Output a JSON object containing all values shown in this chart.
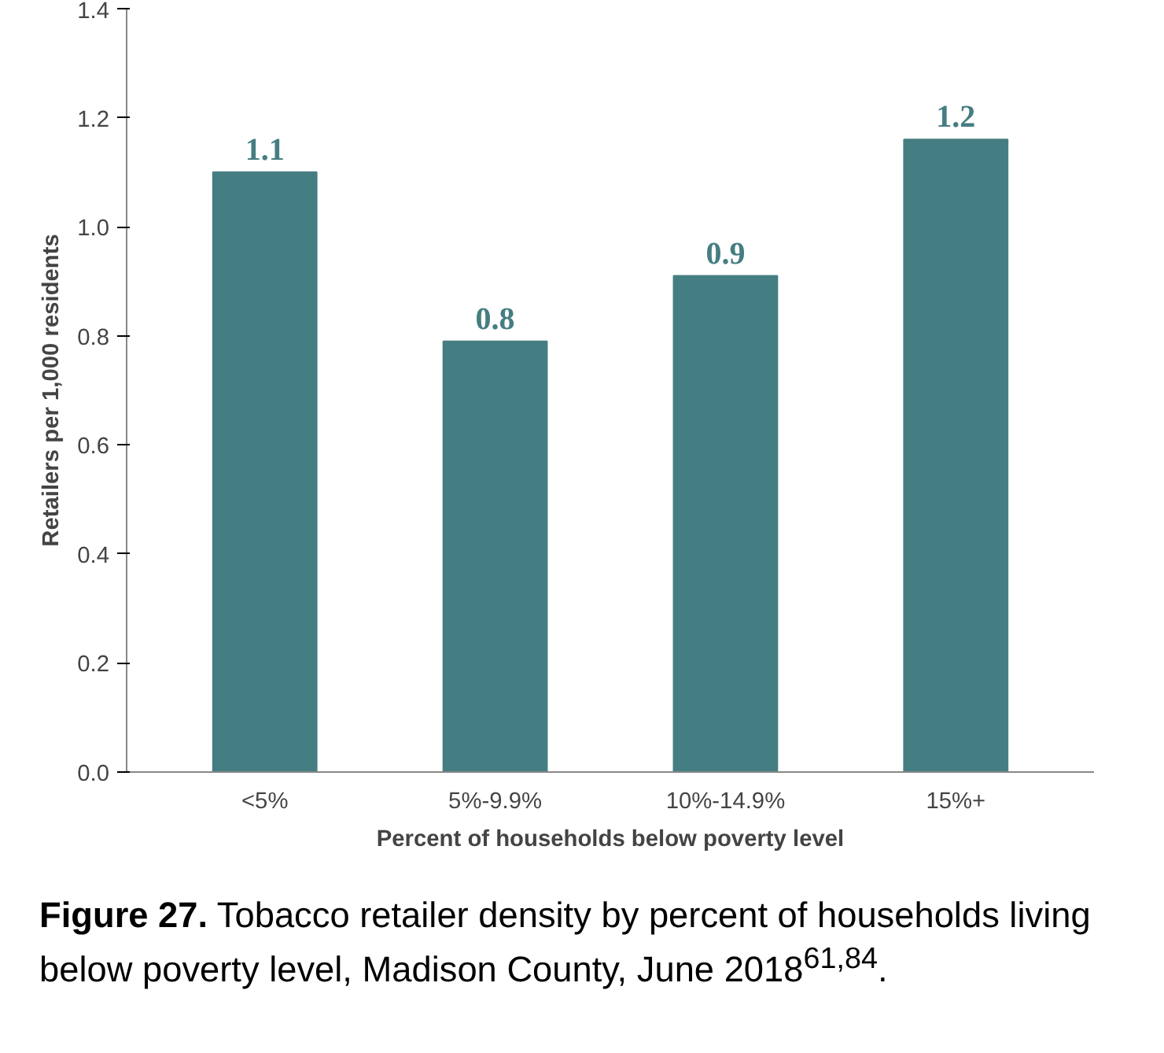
{
  "chart_data": {
    "type": "bar",
    "xlabel": "Percent of households below poverty level",
    "ylabel": "Retailers per 1,000 residents",
    "categories": [
      "<5%",
      "5%-9.9%",
      "10%-14.9%",
      "15%+"
    ],
    "values": [
      1.1,
      0.79,
      0.91,
      1.16
    ],
    "value_labels": [
      "1.1",
      "0.8",
      "0.9",
      "1.2"
    ],
    "color": "#457e82",
    "ylim": [
      0,
      1.4
    ],
    "yticks": [
      "0.0",
      "0.2",
      "0.4",
      "0.6",
      "0.8",
      "1.0",
      "1.2",
      "1.4"
    ],
    "grid": false,
    "annotations": [
      "Figure 27. Tobacco retailer density by percent of households living below poverty level, Madison County, June 2018$^{61,84}$."
    ]
  }
}
